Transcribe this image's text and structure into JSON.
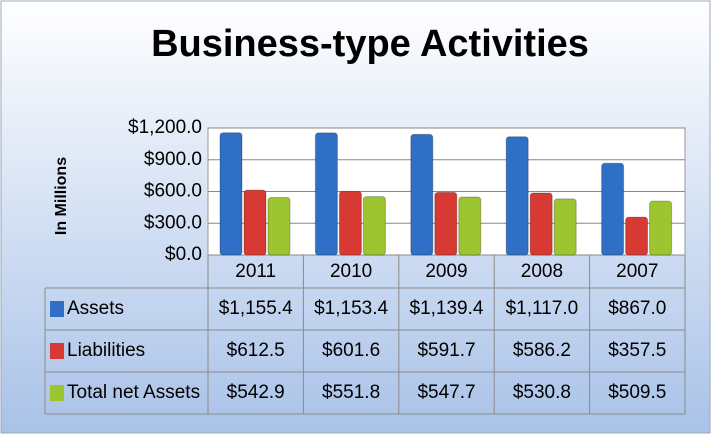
{
  "chart_data": {
    "type": "bar",
    "title": "Business-type Activities",
    "y_label": "In Millions",
    "categories": [
      "2011",
      "2010",
      "2009",
      "2008",
      "2007"
    ],
    "series": [
      {
        "name": "Assets",
        "color": "#2f6fc6",
        "values": [
          1155.4,
          1153.4,
          1139.4,
          1117.0,
          867.0
        ],
        "value_labels": [
          "$1,155.4",
          "$1,153.4",
          "$1,139.4",
          "$1,117.0",
          "$867.0"
        ]
      },
      {
        "name": "Liabilities",
        "color": "#d63a32",
        "values": [
          612.5,
          601.6,
          591.7,
          586.2,
          357.5
        ],
        "value_labels": [
          "$612.5",
          "$601.6",
          "$591.7",
          "$586.2",
          "$357.5"
        ]
      },
      {
        "name": "Total net Assets",
        "color": "#9cc52f",
        "values": [
          542.9,
          551.8,
          547.7,
          530.8,
          509.5
        ],
        "value_labels": [
          "$542.9",
          "$551.8",
          "$547.7",
          "$530.8",
          "$509.5"
        ]
      }
    ],
    "ylim": [
      0,
      1200
    ],
    "yticks": [
      {
        "value": 0,
        "label": "$0.0"
      },
      {
        "value": 300,
        "label": "$300.0"
      },
      {
        "value": 600,
        "label": "$600.0"
      },
      {
        "value": 900,
        "label": "$900.0"
      },
      {
        "value": 1200,
        "label": "$1,200.0"
      }
    ],
    "grid": true
  }
}
